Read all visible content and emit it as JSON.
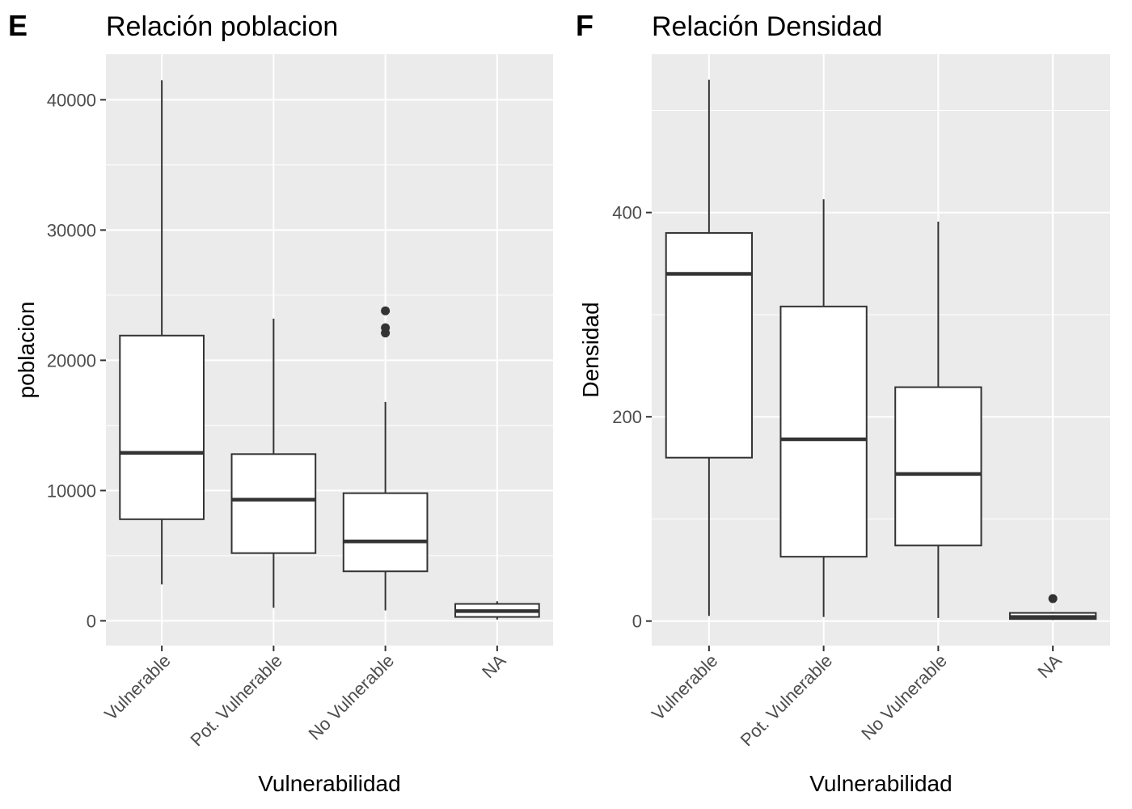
{
  "chart_data": [
    {
      "type": "boxplot",
      "panel_label": "E",
      "title": "Relación  poblacion",
      "xlabel": "Vulnerabilidad",
      "ylabel": "poblacion",
      "categories": [
        "Vulnerable",
        "Pot. Vulnerable",
        "No Vulnerable",
        "NA"
      ],
      "ylim": [
        -1900,
        43500
      ],
      "yticks": [
        0,
        10000,
        20000,
        30000,
        40000
      ],
      "yticks_labels": [
        "0",
        "10000",
        "20000",
        "30000",
        "40000"
      ],
      "boxes": [
        {
          "category": "Vulnerable",
          "whisker_low": 2800,
          "q1": 7800,
          "median": 12900,
          "q3": 21900,
          "whisker_high": 41500,
          "outliers": []
        },
        {
          "category": "Pot. Vulnerable",
          "whisker_low": 1000,
          "q1": 5200,
          "median": 9300,
          "q3": 12800,
          "whisker_high": 23200,
          "outliers": []
        },
        {
          "category": "No Vulnerable",
          "whisker_low": 800,
          "q1": 3800,
          "median": 6100,
          "q3": 9800,
          "whisker_high": 16800,
          "outliers": [
            22100,
            22500,
            23800
          ]
        },
        {
          "category": "NA",
          "whisker_low": 100,
          "q1": 300,
          "median": 750,
          "q3": 1300,
          "whisker_high": 1500,
          "outliers": []
        }
      ],
      "grid": true,
      "background": "#ebebeb"
    },
    {
      "type": "boxplot",
      "panel_label": "F",
      "title": "Relación  Densidad",
      "xlabel": "Vulnerabilidad",
      "ylabel": "Densidad",
      "categories": [
        "Vulnerable",
        "Pot. Vulnerable",
        "No Vulnerable",
        "NA"
      ],
      "ylim": [
        -24,
        555
      ],
      "yticks": [
        0,
        200,
        400
      ],
      "yticks_labels": [
        "0",
        "200",
        "400"
      ],
      "boxes": [
        {
          "category": "Vulnerable",
          "whisker_low": 5,
          "q1": 160,
          "median": 340,
          "q3": 380,
          "whisker_high": 530,
          "outliers": []
        },
        {
          "category": "Pot. Vulnerable",
          "whisker_low": 4,
          "q1": 63,
          "median": 178,
          "q3": 308,
          "whisker_high": 413,
          "outliers": []
        },
        {
          "category": "No Vulnerable",
          "whisker_low": 3,
          "q1": 74,
          "median": 144,
          "q3": 229,
          "whisker_high": 391,
          "outliers": []
        },
        {
          "category": "NA",
          "whisker_low": 1,
          "q1": 2,
          "median": 4,
          "q3": 8,
          "whisker_high": 9,
          "outliers": [
            22
          ]
        }
      ],
      "grid": true,
      "background": "#ebebeb"
    }
  ]
}
